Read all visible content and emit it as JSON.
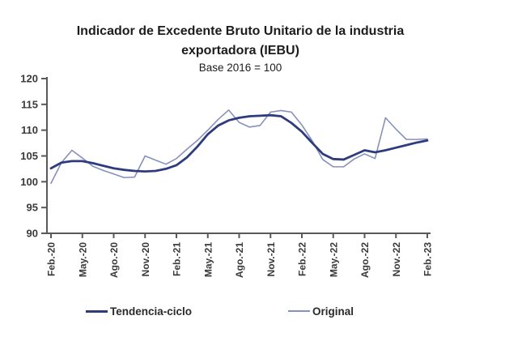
{
  "chart_data": {
    "type": "line",
    "title": "Indicador de Excedente Bruto Unitario de la industria exportadora (IEBU)",
    "subtitle": "Base 2016 = 100",
    "ylim": [
      90,
      120
    ],
    "yticks": [
      90,
      95,
      100,
      105,
      110,
      115,
      120
    ],
    "x_tick_labels": [
      "Feb.-20",
      "May.-20",
      "Ago.-20",
      "Nov.-20",
      "Feb.-21",
      "May.-21",
      "Ago.-21",
      "Nov.-21",
      "Feb.-22",
      "May.-22",
      "Ago.-22",
      "Nov.-22",
      "Feb.-23"
    ],
    "points_per_tick": 3,
    "x_frequency": "monthly",
    "grid": false,
    "legend_position": "bottom",
    "axis_color": "#595959",
    "label_color": "#3a3a3a",
    "series": [
      {
        "name": "Tendencia-ciclo",
        "color": "#2e3c7d",
        "width": 2.8,
        "values": [
          102.6,
          103.7,
          104.0,
          104.0,
          103.6,
          103.1,
          102.6,
          102.3,
          102.1,
          102.0,
          102.1,
          102.5,
          103.2,
          104.7,
          106.8,
          109.2,
          110.9,
          111.9,
          112.4,
          112.7,
          112.8,
          112.9,
          112.7,
          111.4,
          109.7,
          107.5,
          105.4,
          104.4,
          104.3,
          105.2,
          106.1,
          105.7,
          106.1,
          106.6,
          107.1,
          107.6,
          108.0
        ]
      },
      {
        "name": "Original",
        "color": "#8690bf",
        "width": 1.6,
        "values": [
          99.7,
          103.7,
          106.1,
          104.6,
          103.0,
          102.2,
          101.5,
          100.8,
          100.9,
          105.0,
          104.2,
          103.4,
          104.5,
          106.3,
          108.0,
          110.0,
          112.1,
          113.9,
          111.5,
          110.6,
          110.9,
          113.5,
          113.8,
          113.5,
          111.0,
          107.9,
          104.3,
          102.9,
          102.9,
          104.4,
          105.4,
          104.5,
          112.4,
          110.2,
          108.2,
          108.2,
          108.3
        ]
      }
    ]
  }
}
